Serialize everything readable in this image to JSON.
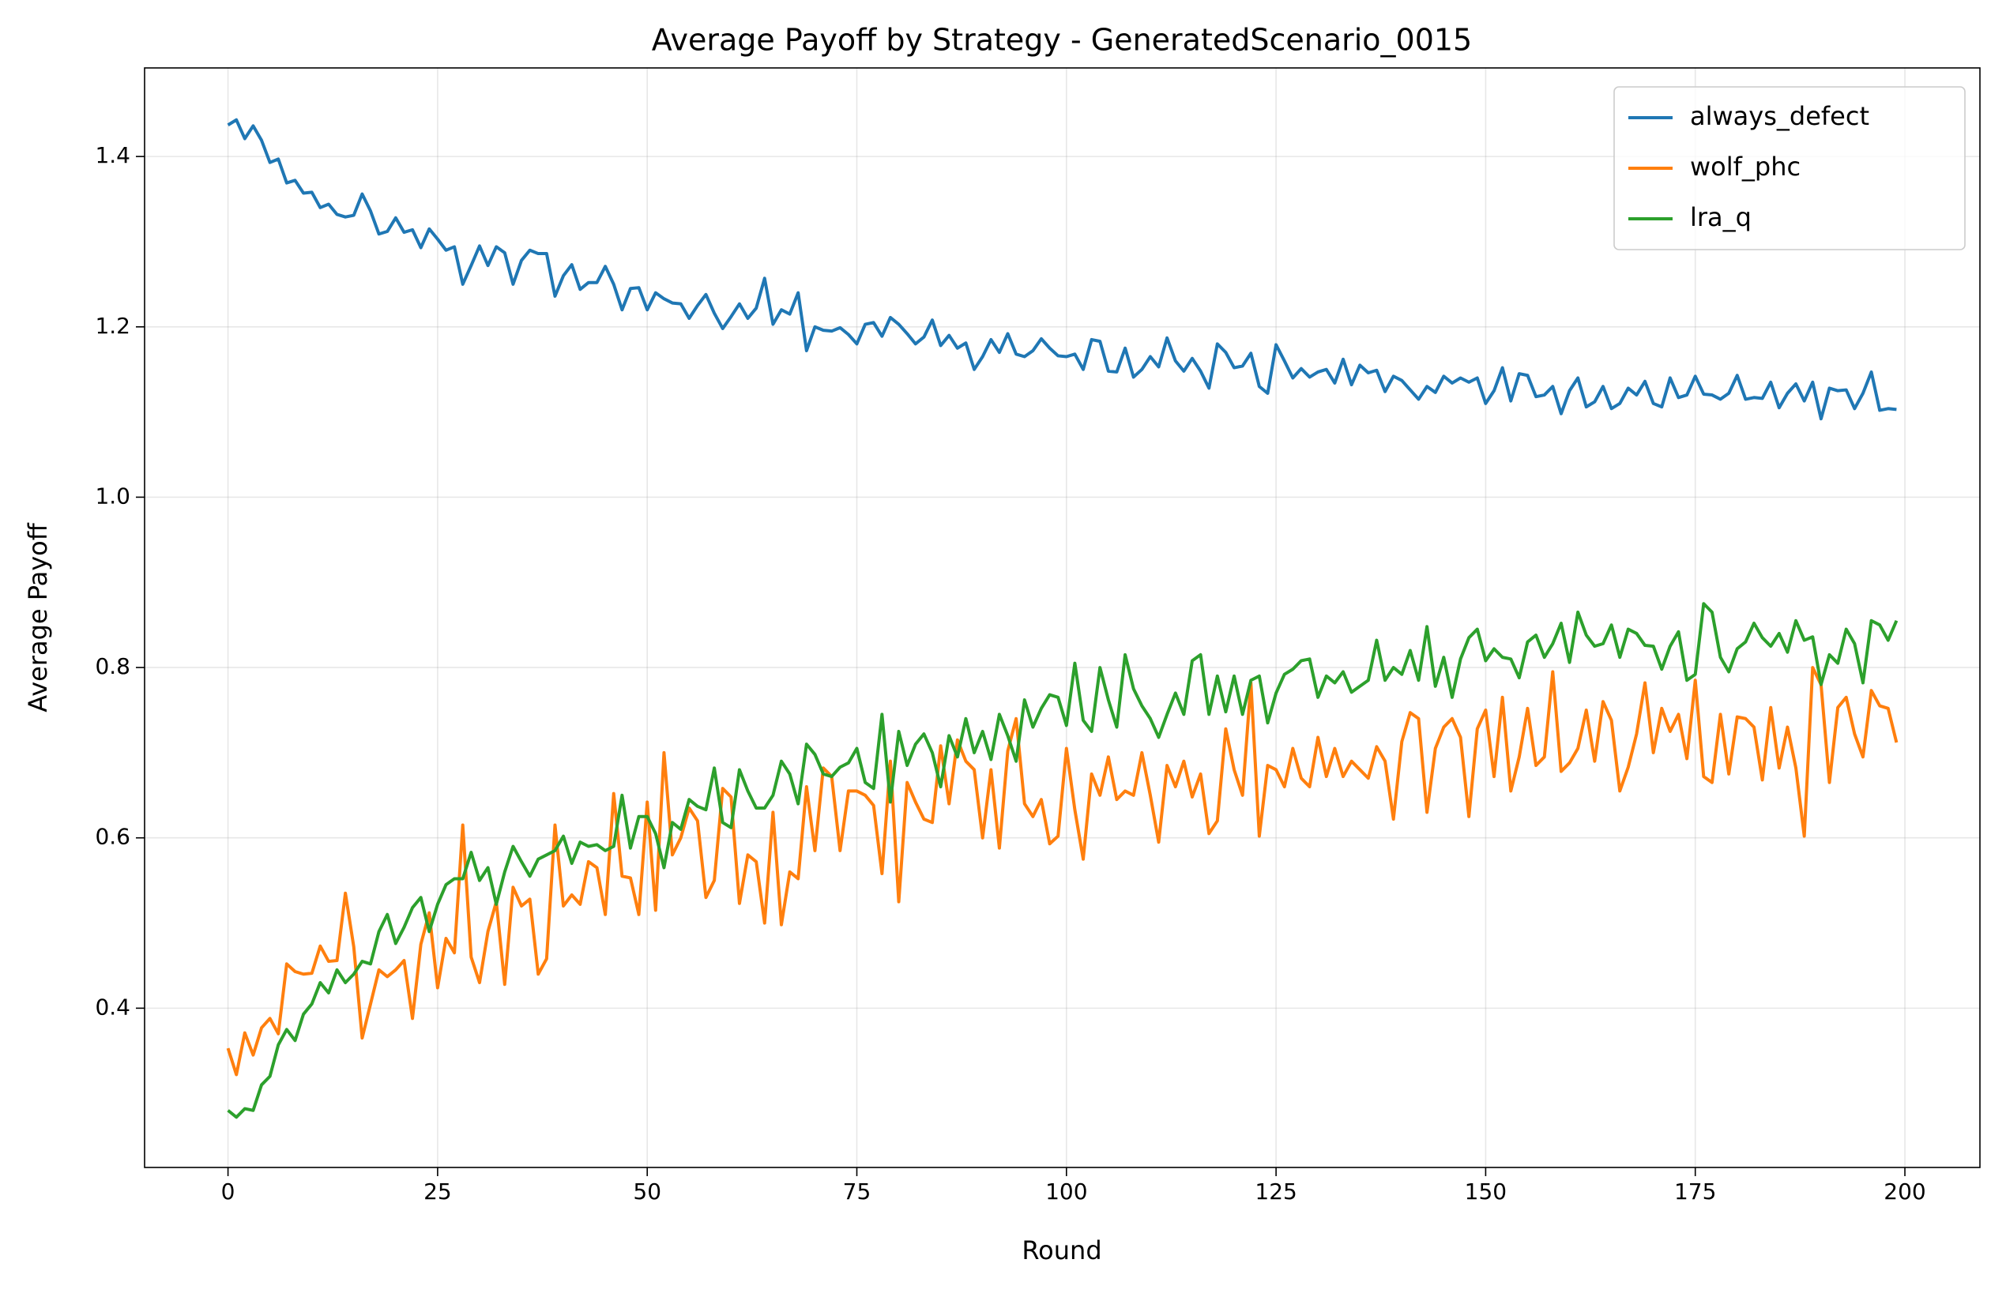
{
  "chart_data": {
    "type": "line",
    "title": "Average Payoff by Strategy - GeneratedScenario_0015",
    "xlabel": "Round",
    "ylabel": "Average Payoff",
    "xlim": [
      -9.95,
      208.95
    ],
    "ylim": [
      0.213,
      1.504
    ],
    "xticks": [
      0,
      25,
      50,
      75,
      100,
      125,
      150,
      175,
      200
    ],
    "yticks": [
      0.4,
      0.6,
      0.8,
      {
        "value": 1.0,
        "label": "1.0"
      },
      1.2,
      1.4
    ],
    "grid": true,
    "legend": "upper right",
    "x": [
      0,
      1,
      2,
      3,
      4,
      5,
      6,
      7,
      8,
      9,
      10,
      11,
      12,
      13,
      14,
      15,
      16,
      17,
      18,
      19,
      20,
      21,
      22,
      23,
      24,
      25,
      26,
      27,
      28,
      29,
      30,
      31,
      32,
      33,
      34,
      35,
      36,
      37,
      38,
      39,
      40,
      41,
      42,
      43,
      44,
      45,
      46,
      47,
      48,
      49,
      50,
      51,
      52,
      53,
      54,
      55,
      56,
      57,
      58,
      59,
      60,
      61,
      62,
      63,
      64,
      65,
      66,
      67,
      68,
      69,
      70,
      71,
      72,
      73,
      74,
      75,
      76,
      77,
      78,
      79,
      80,
      81,
      82,
      83,
      84,
      85,
      86,
      87,
      88,
      89,
      90,
      91,
      92,
      93,
      94,
      95,
      96,
      97,
      98,
      99,
      100,
      101,
      102,
      103,
      104,
      105,
      106,
      107,
      108,
      109,
      110,
      111,
      112,
      113,
      114,
      115,
      116,
      117,
      118,
      119,
      120,
      121,
      122,
      123,
      124,
      125,
      126,
      127,
      128,
      129,
      130,
      131,
      132,
      133,
      134,
      135,
      136,
      137,
      138,
      139,
      140,
      141,
      142,
      143,
      144,
      145,
      146,
      147,
      148,
      149,
      150,
      151,
      152,
      153,
      154,
      155,
      156,
      157,
      158,
      159,
      160,
      161,
      162,
      163,
      164,
      165,
      166,
      167,
      168,
      169,
      170,
      171,
      172,
      173,
      174,
      175,
      176,
      177,
      178,
      179,
      180,
      181,
      182,
      183,
      184,
      185,
      186,
      187,
      188,
      189,
      190,
      191,
      192,
      193,
      194,
      195,
      196,
      197,
      198,
      199
    ],
    "series": [
      {
        "name": "always_defect",
        "color": "#1f77b4",
        "values": [
          1.437,
          1.443,
          1.421,
          1.436,
          1.419,
          1.393,
          1.397,
          1.369,
          1.372,
          1.357,
          1.358,
          1.34,
          1.344,
          1.332,
          1.329,
          1.331,
          1.356,
          1.336,
          1.309,
          1.312,
          1.328,
          1.311,
          1.314,
          1.293,
          1.315,
          1.303,
          1.29,
          1.294,
          1.25,
          1.272,
          1.295,
          1.272,
          1.294,
          1.287,
          1.25,
          1.278,
          1.29,
          1.286,
          1.286,
          1.236,
          1.26,
          1.273,
          1.244,
          1.252,
          1.252,
          1.271,
          1.25,
          1.22,
          1.245,
          1.246,
          1.22,
          1.24,
          1.233,
          1.228,
          1.227,
          1.21,
          1.225,
          1.238,
          1.216,
          1.198,
          1.212,
          1.227,
          1.21,
          1.222,
          1.257,
          1.203,
          1.22,
          1.215,
          1.24,
          1.172,
          1.2,
          1.196,
          1.195,
          1.199,
          1.191,
          1.18,
          1.203,
          1.205,
          1.189,
          1.211,
          1.203,
          1.192,
          1.18,
          1.188,
          1.208,
          1.178,
          1.19,
          1.175,
          1.181,
          1.15,
          1.165,
          1.185,
          1.17,
          1.192,
          1.168,
          1.165,
          1.172,
          1.186,
          1.175,
          1.166,
          1.165,
          1.168,
          1.15,
          1.185,
          1.183,
          1.148,
          1.147,
          1.175,
          1.141,
          1.15,
          1.165,
          1.153,
          1.187,
          1.16,
          1.148,
          1.163,
          1.148,
          1.128,
          1.18,
          1.17,
          1.152,
          1.154,
          1.169,
          1.13,
          1.122,
          1.179,
          1.16,
          1.14,
          1.151,
          1.141,
          1.147,
          1.15,
          1.134,
          1.162,
          1.132,
          1.155,
          1.146,
          1.149,
          1.124,
          1.142,
          1.137,
          1.126,
          1.115,
          1.13,
          1.123,
          1.142,
          1.134,
          1.14,
          1.135,
          1.14,
          1.11,
          1.125,
          1.152,
          1.113,
          1.145,
          1.143,
          1.118,
          1.12,
          1.13,
          1.098,
          1.125,
          1.14,
          1.106,
          1.112,
          1.13,
          1.104,
          1.11,
          1.128,
          1.12,
          1.136,
          1.11,
          1.106,
          1.14,
          1.117,
          1.12,
          1.142,
          1.121,
          1.12,
          1.115,
          1.122,
          1.143,
          1.115,
          1.117,
          1.116,
          1.135,
          1.105,
          1.122,
          1.133,
          1.113,
          1.135,
          1.092,
          1.128,
          1.125,
          1.126,
          1.104,
          1.122,
          1.147,
          1.102,
          1.104,
          1.103
        ]
      },
      {
        "name": "wolf_phc",
        "color": "#ff7f0e",
        "values": [
          0.353,
          0.322,
          0.371,
          0.345,
          0.377,
          0.388,
          0.37,
          0.452,
          0.443,
          0.44,
          0.441,
          0.473,
          0.455,
          0.456,
          0.535,
          0.472,
          0.365,
          0.405,
          0.445,
          0.437,
          0.445,
          0.456,
          0.388,
          0.475,
          0.512,
          0.424,
          0.482,
          0.465,
          0.615,
          0.46,
          0.43,
          0.49,
          0.525,
          0.428,
          0.542,
          0.52,
          0.528,
          0.44,
          0.458,
          0.615,
          0.52,
          0.533,
          0.522,
          0.572,
          0.565,
          0.51,
          0.652,
          0.555,
          0.553,
          0.51,
          0.642,
          0.515,
          0.7,
          0.58,
          0.6,
          0.635,
          0.62,
          0.53,
          0.55,
          0.658,
          0.648,
          0.523,
          0.58,
          0.572,
          0.5,
          0.63,
          0.498,
          0.56,
          0.552,
          0.66,
          0.585,
          0.682,
          0.672,
          0.585,
          0.655,
          0.655,
          0.65,
          0.638,
          0.558,
          0.69,
          0.525,
          0.665,
          0.642,
          0.622,
          0.618,
          0.708,
          0.64,
          0.715,
          0.69,
          0.68,
          0.6,
          0.68,
          0.588,
          0.702,
          0.74,
          0.64,
          0.625,
          0.645,
          0.593,
          0.602,
          0.705,
          0.633,
          0.575,
          0.675,
          0.65,
          0.695,
          0.645,
          0.655,
          0.65,
          0.7,
          0.65,
          0.595,
          0.685,
          0.66,
          0.69,
          0.648,
          0.675,
          0.605,
          0.62,
          0.728,
          0.68,
          0.65,
          0.782,
          0.602,
          0.685,
          0.68,
          0.66,
          0.705,
          0.67,
          0.66,
          0.718,
          0.672,
          0.705,
          0.672,
          0.69,
          0.68,
          0.67,
          0.707,
          0.69,
          0.622,
          0.713,
          0.747,
          0.74,
          0.63,
          0.705,
          0.73,
          0.74,
          0.718,
          0.625,
          0.728,
          0.75,
          0.672,
          0.765,
          0.655,
          0.695,
          0.752,
          0.685,
          0.695,
          0.795,
          0.678,
          0.688,
          0.705,
          0.75,
          0.69,
          0.76,
          0.738,
          0.655,
          0.683,
          0.722,
          0.782,
          0.7,
          0.752,
          0.725,
          0.745,
          0.693,
          0.785,
          0.672,
          0.665,
          0.745,
          0.675,
          0.742,
          0.74,
          0.73,
          0.668,
          0.753,
          0.682,
          0.73,
          0.682,
          0.602,
          0.8,
          0.78,
          0.665,
          0.753,
          0.765,
          0.722,
          0.695,
          0.773,
          0.755,
          0.752,
          0.712
        ]
      },
      {
        "name": "lra_q",
        "color": "#2ca02c",
        "values": [
          0.28,
          0.272,
          0.282,
          0.28,
          0.31,
          0.32,
          0.357,
          0.375,
          0.362,
          0.393,
          0.405,
          0.43,
          0.418,
          0.445,
          0.43,
          0.44,
          0.455,
          0.452,
          0.49,
          0.51,
          0.476,
          0.495,
          0.518,
          0.53,
          0.49,
          0.522,
          0.545,
          0.552,
          0.552,
          0.583,
          0.55,
          0.565,
          0.522,
          0.56,
          0.59,
          0.572,
          0.555,
          0.575,
          0.58,
          0.585,
          0.602,
          0.57,
          0.595,
          0.59,
          0.592,
          0.585,
          0.59,
          0.65,
          0.588,
          0.625,
          0.625,
          0.605,
          0.565,
          0.618,
          0.61,
          0.645,
          0.637,
          0.633,
          0.682,
          0.618,
          0.612,
          0.68,
          0.655,
          0.635,
          0.635,
          0.65,
          0.69,
          0.675,
          0.64,
          0.71,
          0.698,
          0.675,
          0.672,
          0.683,
          0.688,
          0.705,
          0.665,
          0.658,
          0.745,
          0.642,
          0.725,
          0.685,
          0.71,
          0.722,
          0.7,
          0.66,
          0.72,
          0.695,
          0.74,
          0.7,
          0.725,
          0.692,
          0.745,
          0.72,
          0.69,
          0.762,
          0.73,
          0.752,
          0.768,
          0.765,
          0.732,
          0.805,
          0.738,
          0.725,
          0.8,
          0.762,
          0.73,
          0.815,
          0.775,
          0.755,
          0.74,
          0.718,
          0.745,
          0.77,
          0.745,
          0.808,
          0.815,
          0.745,
          0.79,
          0.748,
          0.79,
          0.745,
          0.785,
          0.79,
          0.735,
          0.77,
          0.792,
          0.798,
          0.808,
          0.81,
          0.765,
          0.79,
          0.782,
          0.795,
          0.771,
          0.778,
          0.785,
          0.832,
          0.785,
          0.8,
          0.792,
          0.82,
          0.785,
          0.848,
          0.778,
          0.812,
          0.765,
          0.81,
          0.835,
          0.845,
          0.808,
          0.822,
          0.812,
          0.81,
          0.788,
          0.83,
          0.838,
          0.812,
          0.828,
          0.852,
          0.806,
          0.865,
          0.838,
          0.825,
          0.828,
          0.85,
          0.812,
          0.845,
          0.84,
          0.826,
          0.825,
          0.798,
          0.825,
          0.842,
          0.785,
          0.792,
          0.875,
          0.865,
          0.812,
          0.795,
          0.822,
          0.83,
          0.852,
          0.835,
          0.825,
          0.84,
          0.818,
          0.855,
          0.832,
          0.836,
          0.78,
          0.815,
          0.805,
          0.845,
          0.828,
          0.782,
          0.855,
          0.85,
          0.832,
          0.855
        ]
      }
    ]
  }
}
